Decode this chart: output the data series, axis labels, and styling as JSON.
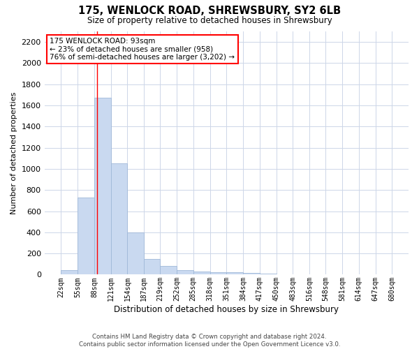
{
  "title": "175, WENLOCK ROAD, SHREWSBURY, SY2 6LB",
  "subtitle": "Size of property relative to detached houses in Shrewsbury",
  "xlabel": "Distribution of detached houses by size in Shrewsbury",
  "ylabel": "Number of detached properties",
  "footer_line1": "Contains HM Land Registry data © Crown copyright and database right 2024.",
  "footer_line2": "Contains public sector information licensed under the Open Government Licence v3.0.",
  "annotation_line1": "175 WENLOCK ROAD: 93sqm",
  "annotation_line2": "← 23% of detached houses are smaller (958)",
  "annotation_line3": "76% of semi-detached houses are larger (3,202) →",
  "bar_color": "#c9d9f0",
  "bar_edge_color": "#a0b8d8",
  "red_line_x": 93,
  "bin_edges": [
    22,
    55,
    88,
    121,
    154,
    187,
    219,
    252,
    285,
    318,
    351,
    384,
    417,
    450,
    483,
    516,
    548,
    581,
    614,
    647,
    680
  ],
  "bar_heights": [
    40,
    730,
    1670,
    1050,
    400,
    150,
    80,
    40,
    30,
    25,
    20,
    15,
    8,
    5,
    3,
    2,
    1,
    1,
    0,
    0
  ],
  "ylim": [
    0,
    2300
  ],
  "yticks": [
    0,
    200,
    400,
    600,
    800,
    1000,
    1200,
    1400,
    1600,
    1800,
    2000,
    2200
  ],
  "background_color": "#ffffff",
  "grid_color": "#cdd6e8"
}
